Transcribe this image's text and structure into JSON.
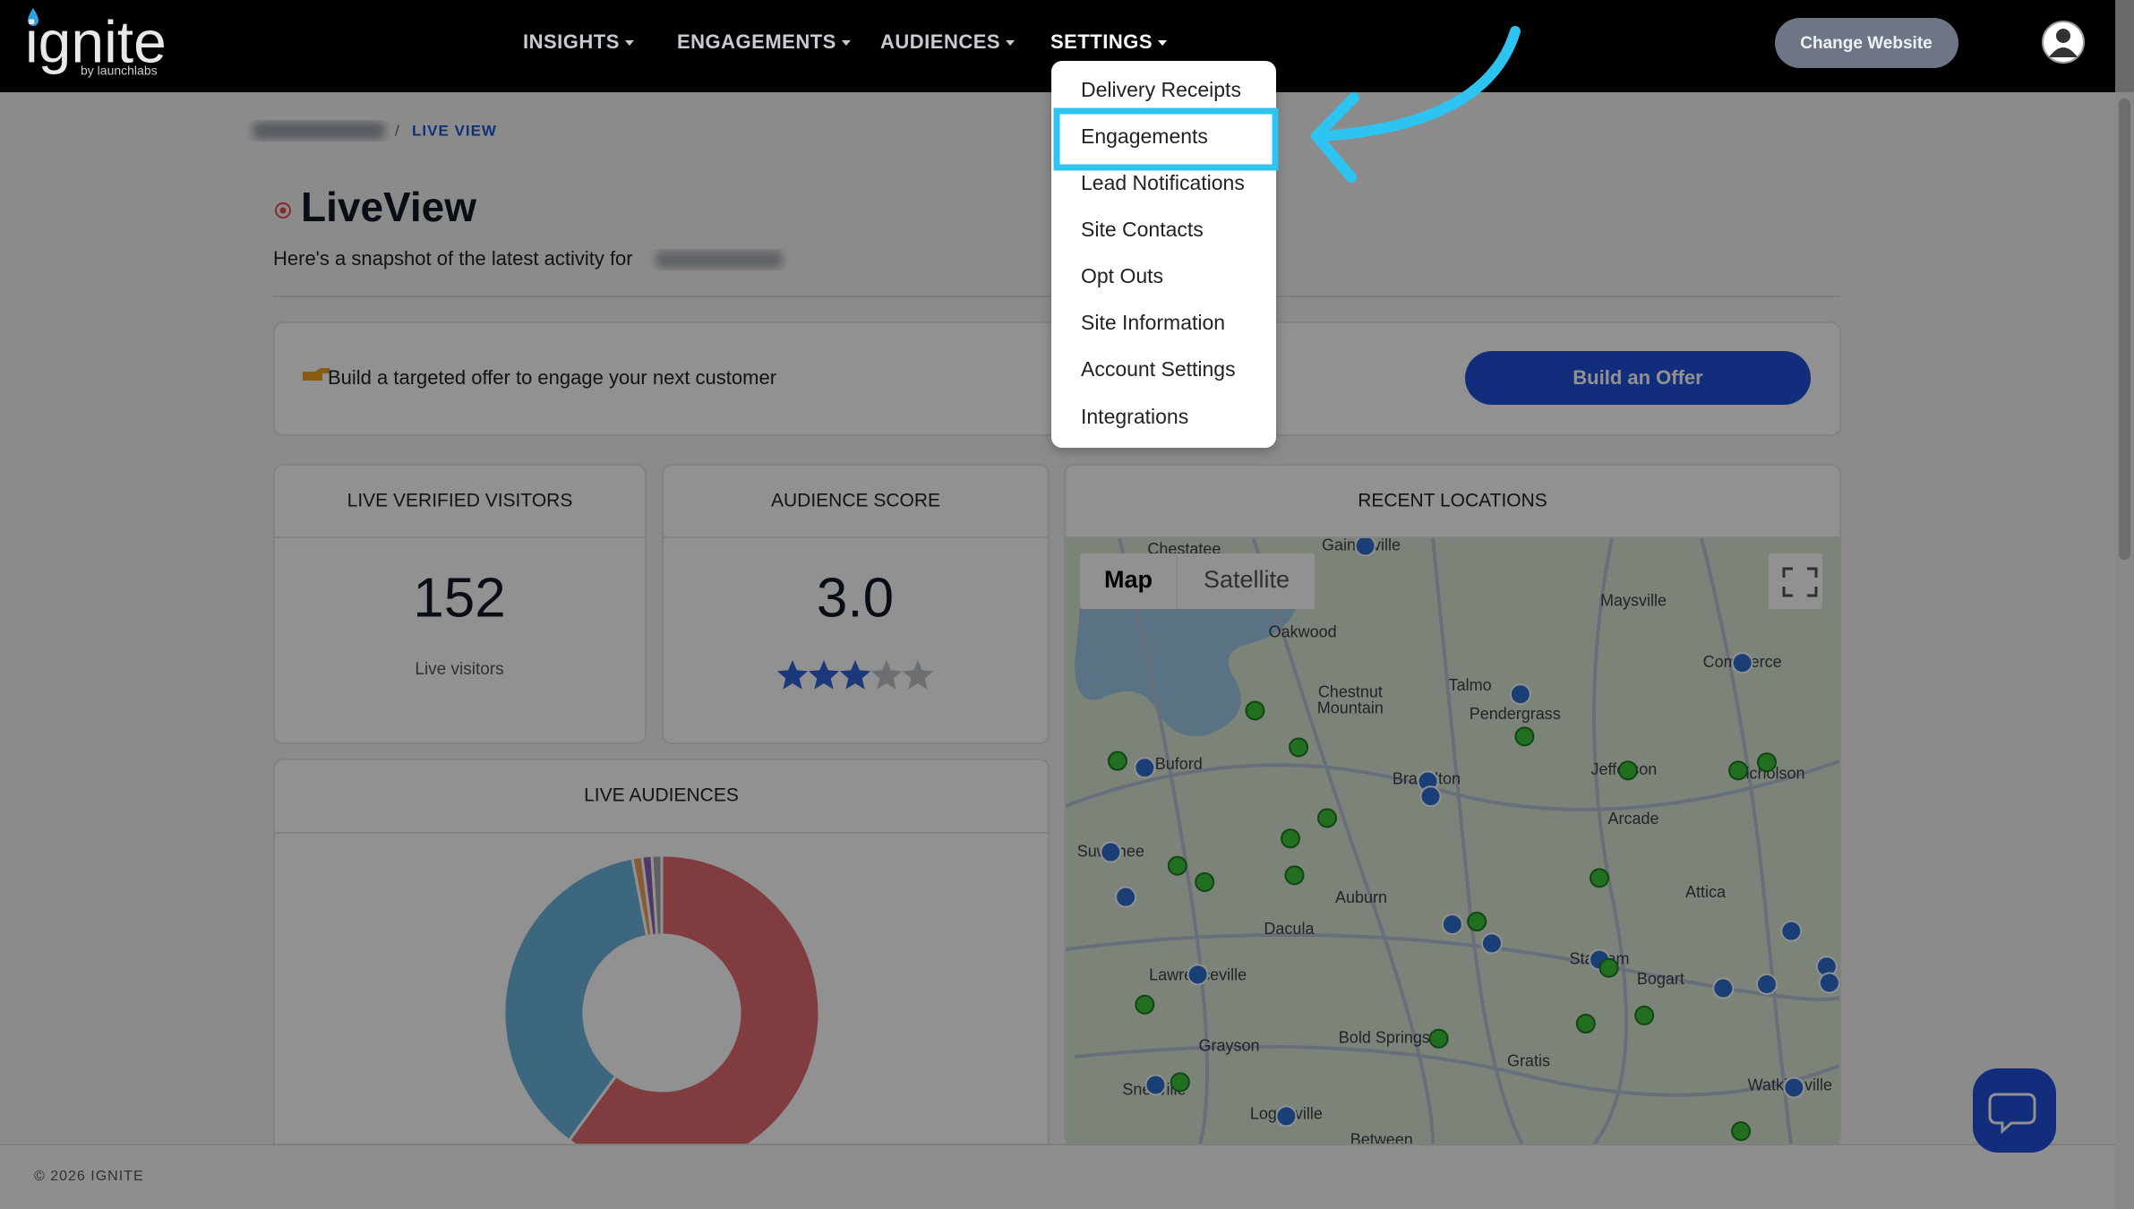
{
  "header": {
    "logo": "ignite",
    "logo_sub": "by launchlabs",
    "nav": [
      "INSIGHTS",
      "ENGAGEMENTS",
      "AUDIENCES",
      "SETTINGS"
    ],
    "change_website": "Change Website"
  },
  "settings_menu": {
    "items": [
      "Delivery Receipts",
      "Engagements",
      "Lead Notifications",
      "Site Contacts",
      "Opt Outs",
      "Site Information",
      "Account Settings",
      "Integrations"
    ]
  },
  "breadcrumb": {
    "separator": "/",
    "current": "LIVE VIEW"
  },
  "page": {
    "title": "LiveView",
    "subtitle": "Here's a snapshot of the latest activity for"
  },
  "offer": {
    "text": "Build a targeted offer to engage your next customer",
    "button": "Build an Offer"
  },
  "cards": {
    "visitors": {
      "title": "LIVE VERIFIED VISITORS",
      "value": 152,
      "label": "Live visitors"
    },
    "score": {
      "title": "AUDIENCE SCORE",
      "value": "3.0",
      "rating": 3,
      "rating_max": 5
    }
  },
  "live_audiences": {
    "title": "LIVE AUDIENCES",
    "values": [
      60,
      37,
      1,
      1,
      1
    ],
    "colors": [
      "#e26a6e",
      "#6cb6de",
      "#f0a35a",
      "#8b62b5",
      "#a7a7a7"
    ]
  },
  "map": {
    "title": "RECENT LOCATIONS",
    "tabs": [
      "Map",
      "Satellite"
    ],
    "places": [
      "Chestatee",
      "Gainesville",
      "Maysville",
      "Oakwood",
      "Chestnut",
      "Mountain",
      "Talmo",
      "Pendergrass",
      "Commerce",
      "Buford",
      "Braselton",
      "Jefferson",
      "Nicholson",
      "Arcade",
      "Suwanee",
      "Auburn",
      "Attica",
      "Dacula",
      "Lawrenceville",
      "Statham",
      "Bogart",
      "Grayson",
      "Bold Springs",
      "Gratis",
      "Snellville",
      "Watkinsville",
      "Loganville",
      "Between"
    ]
  },
  "footer": "© 2026 IGNITE"
}
